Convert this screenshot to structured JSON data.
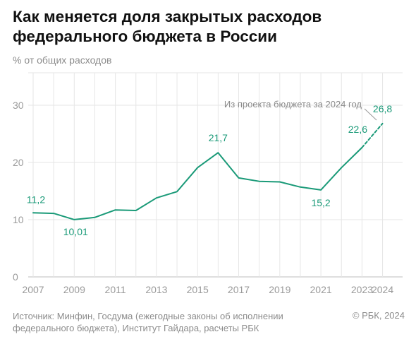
{
  "header": {
    "title_line1": "Как меняется доля закрытых расходов",
    "title_line2": "федерального бюджета в России",
    "subtitle": "% от общих расходов"
  },
  "footer": {
    "source_line1": "Источник: Минфин, Госдума (ежегодные законы об исполнении",
    "source_line2": "федерального бюджета), Институт Гайдара, расчеты РБК",
    "copyright": "© РБК, 2024"
  },
  "colors": {
    "line": "#1a9a78",
    "label": "#1a9a78",
    "grid": "#e6e6e6",
    "axis_text": "#9a9a9a",
    "annotation": "#8a8a8a"
  },
  "chart_data": {
    "type": "line",
    "title": "Как меняется доля закрытых расходов федерального бюджета в России",
    "ylabel": "% от общих расходов",
    "ylim": [
      0,
      35
    ],
    "yticks": [
      0,
      10,
      20,
      30
    ],
    "xticks": [
      "2007",
      "2009",
      "2011",
      "2013",
      "2015",
      "2017",
      "2019",
      "2021",
      "2023",
      "2024"
    ],
    "grid": true,
    "series": [
      {
        "style": "solid",
        "x": [
          2007,
          2008,
          2009,
          2010,
          2011,
          2012,
          2013,
          2014,
          2015,
          2016,
          2017,
          2018,
          2019,
          2020,
          2021,
          2022,
          2023
        ],
        "y": [
          11.2,
          11.1,
          10.01,
          10.4,
          11.7,
          11.6,
          13.8,
          14.9,
          19.1,
          21.7,
          17.3,
          16.7,
          16.6,
          15.7,
          15.2,
          19.1,
          22.6
        ]
      },
      {
        "style": "dashed",
        "x": [
          2023,
          2024
        ],
        "y": [
          22.6,
          26.8
        ]
      }
    ],
    "data_labels": [
      {
        "x": 2007,
        "y": 11.2,
        "text": "11,2"
      },
      {
        "x": 2009,
        "y": 10.01,
        "text": "10,01"
      },
      {
        "x": 2016,
        "y": 21.7,
        "text": "21,7"
      },
      {
        "x": 2021,
        "y": 15.2,
        "text": "15,2"
      },
      {
        "x": 2023,
        "y": 22.6,
        "text": "22,6"
      },
      {
        "x": 2024,
        "y": 26.8,
        "text": "26,8"
      }
    ],
    "annotation": {
      "text": "Из проекта бюджета за 2024 год",
      "x": 2024,
      "y": 26.8
    }
  }
}
